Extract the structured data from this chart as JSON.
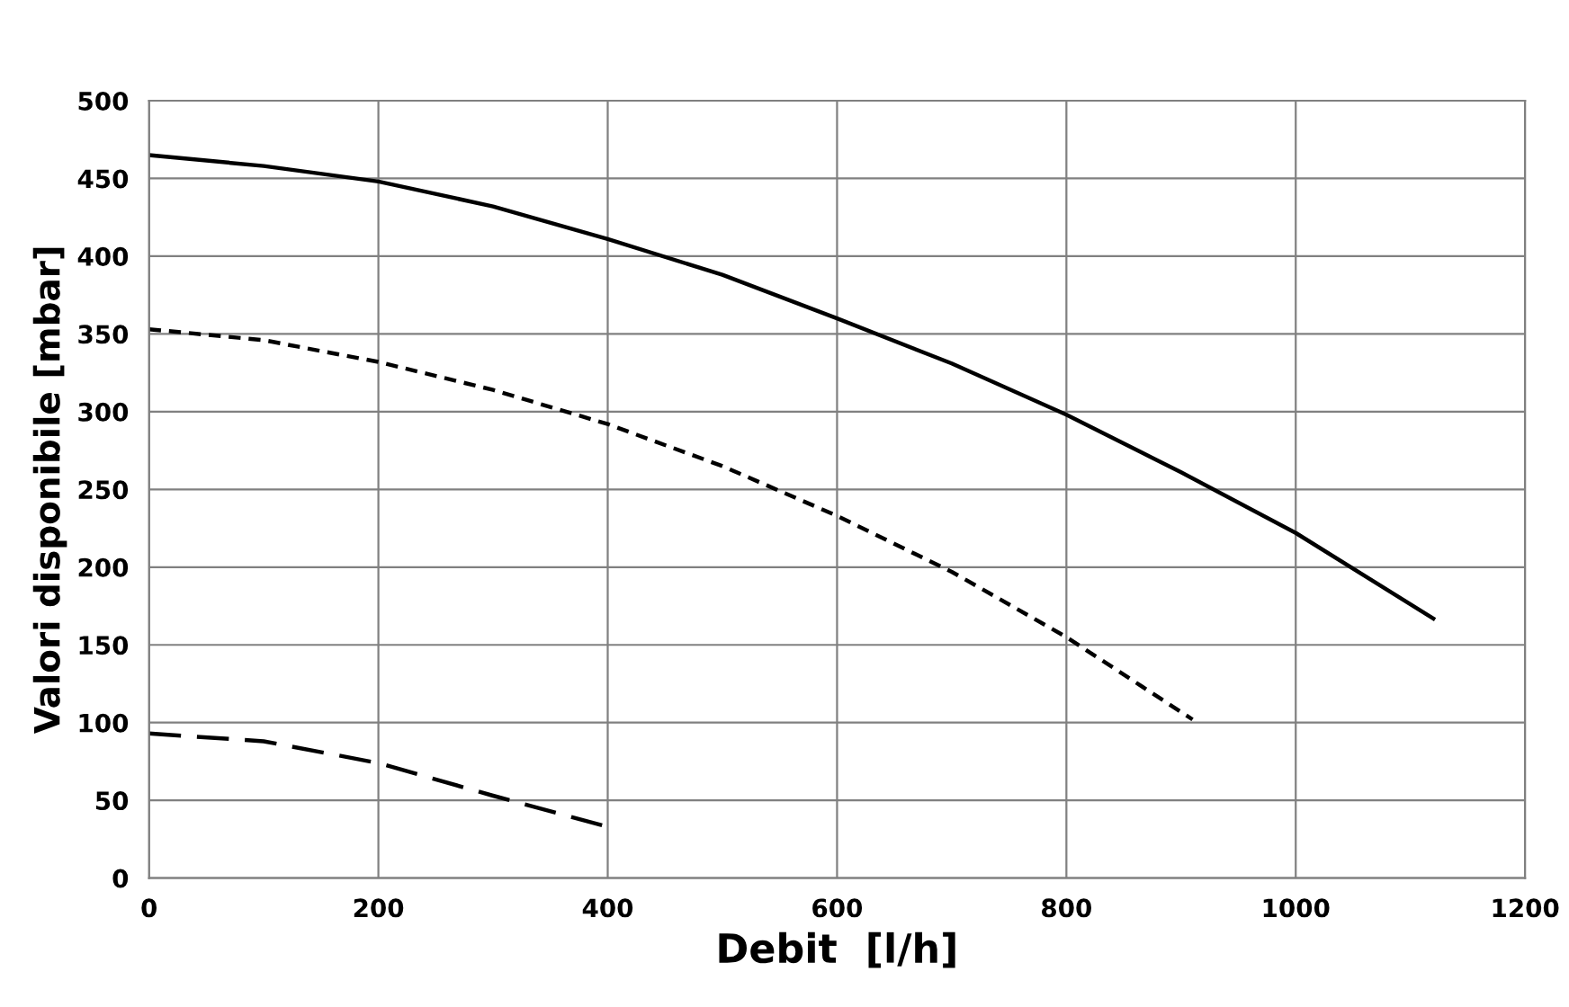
{
  "chart_data": {
    "type": "line",
    "xlabel": "Debit  [l/h]",
    "ylabel": "Valori disponibile [mbar]",
    "xlim": [
      0,
      1200
    ],
    "ylim": [
      0,
      500
    ],
    "xticks": [
      0,
      200,
      400,
      600,
      800,
      1000,
      1200
    ],
    "yticks": [
      0,
      50,
      100,
      150,
      200,
      250,
      300,
      350,
      400,
      450,
      500
    ],
    "grid": true,
    "marker": "none",
    "series": [
      {
        "color": "#000000",
        "line_style": "solid",
        "x": [
          0,
          100,
          200,
          300,
          400,
          500,
          600,
          700,
          800,
          900,
          1000,
          1120
        ],
        "values": [
          465,
          458,
          448,
          432,
          411,
          388,
          360,
          331,
          298,
          261,
          222,
          167
        ]
      },
      {
        "color": "#000000",
        "line_style": "dotted",
        "x": [
          0,
          100,
          200,
          300,
          400,
          500,
          600,
          700,
          800,
          910
        ],
        "values": [
          353,
          346,
          332,
          314,
          292,
          265,
          233,
          197,
          155,
          102
        ]
      },
      {
        "color": "#000000",
        "line_style": "dashed",
        "x": [
          0,
          100,
          200,
          300,
          405
        ],
        "values": [
          93,
          88,
          74,
          53,
          32
        ]
      }
    ]
  }
}
